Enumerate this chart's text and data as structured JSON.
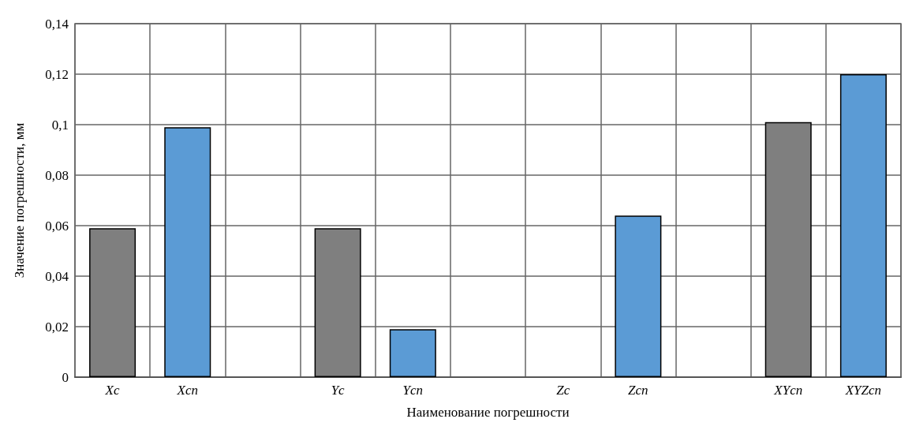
{
  "chart_data": {
    "type": "bar",
    "xlabel": "Наименование погрешности",
    "ylabel": "Значение погрешности, мм",
    "categories": [
      "Xc",
      "Xcn",
      null,
      "Yc",
      "Ycn",
      null,
      "Zc",
      "Zcn",
      null,
      "XYcn",
      "XYZcn"
    ],
    "values": [
      0.059,
      0.099,
      null,
      0.059,
      0.019,
      null,
      null,
      0.064,
      null,
      0.101,
      0.12
    ],
    "colors": [
      "#7f7f7f",
      "#5b9bd5",
      null,
      "#7f7f7f",
      "#5b9bd5",
      null,
      null,
      "#5b9bd5",
      null,
      "#7f7f7f",
      "#5b9bd5"
    ],
    "ylim": [
      0,
      0.14
    ],
    "yticks": [
      0,
      {
        "value": 0.02,
        "label": "0,02"
      },
      {
        "value": 0.04,
        "label": "0,04"
      },
      {
        "value": 0.06,
        "label": "0,06"
      },
      {
        "value": 0.08,
        "label": "0,08"
      },
      {
        "value": 0.1,
        "label": "0,1"
      },
      {
        "value": 0.12,
        "label": "0,12"
      },
      {
        "value": 0.14,
        "label": "0,14"
      }
    ],
    "grid": true
  }
}
